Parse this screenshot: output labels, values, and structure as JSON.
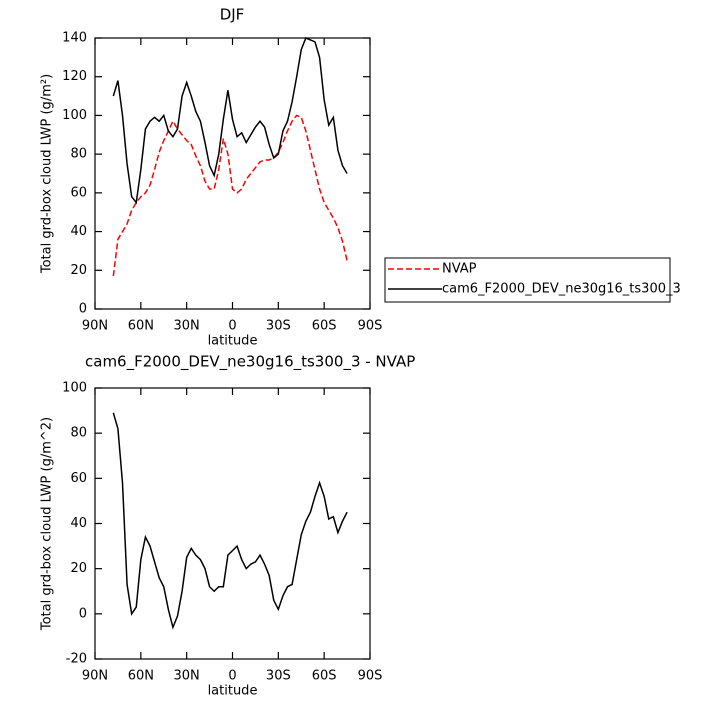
{
  "chart_data": [
    {
      "type": "line",
      "title": "DJF",
      "xlabel": "latitude",
      "ylabel": "Total grd-box cloud LWP (g/m²)",
      "x": [
        78,
        75,
        72,
        69,
        66,
        63,
        60,
        57,
        54,
        51,
        48,
        45,
        42,
        39,
        36,
        33,
        30,
        27,
        24,
        21,
        18,
        15,
        12,
        9,
        6,
        3,
        0,
        -3,
        -6,
        -9,
        -12,
        -15,
        -18,
        -21,
        -24,
        -27,
        -30,
        -33,
        -36,
        -39,
        -42,
        -45,
        -48,
        -51,
        -54,
        -57,
        -60,
        -63,
        -66,
        -69,
        -72,
        -75
      ],
      "xlim": [
        90,
        -90
      ],
      "xticks": [
        {
          "value": 90,
          "label": "90N"
        },
        {
          "value": 60,
          "label": "60N"
        },
        {
          "value": 30,
          "label": "30N"
        },
        0,
        {
          "value": -30,
          "label": "30S"
        },
        {
          "value": -60,
          "label": "60S"
        },
        {
          "value": -90,
          "label": "90S"
        }
      ],
      "ylim": [
        0,
        140
      ],
      "yticks": [
        0,
        20,
        40,
        60,
        80,
        100,
        120,
        140
      ],
      "legend": "outside-right",
      "series": [
        {
          "name": "NVAP",
          "color": "#ff0000",
          "style": "dashed",
          "values": [
            17,
            36,
            40,
            44,
            51,
            55,
            58,
            60,
            64,
            72,
            81,
            87,
            92,
            97,
            93,
            90,
            87,
            85,
            79,
            74,
            66,
            62,
            62,
            72,
            88,
            80,
            62,
            60,
            62,
            67,
            70,
            73,
            76,
            77,
            77,
            78,
            81,
            86,
            92,
            97,
            100,
            99,
            92,
            82,
            72,
            62,
            55,
            51,
            47,
            42,
            35,
            25
          ]
        },
        {
          "name": "cam6_F2000_DEV_ne30g16_ts300_3",
          "color": "#000000",
          "style": "solid",
          "values": [
            110,
            118,
            100,
            75,
            58,
            55,
            72,
            93,
            97,
            99,
            97,
            100,
            92,
            89,
            93,
            110,
            117,
            110,
            102,
            97,
            86,
            74,
            69,
            80,
            98,
            113,
            98,
            89,
            91,
            86,
            90,
            94,
            97,
            94,
            85,
            78,
            80,
            92,
            97,
            107,
            120,
            134,
            140,
            139,
            138,
            130,
            108,
            95,
            99,
            82,
            74,
            70
          ]
        }
      ]
    },
    {
      "type": "line",
      "title": "cam6_F2000_DEV_ne30g16_ts300_3 - NVAP",
      "xlabel": "latitude",
      "ylabel": "Total grd-box cloud LWP (g/m^2)",
      "x": [
        78,
        75,
        72,
        69,
        66,
        63,
        60,
        57,
        54,
        51,
        48,
        45,
        42,
        39,
        36,
        33,
        30,
        27,
        24,
        21,
        18,
        15,
        12,
        9,
        6,
        3,
        0,
        -3,
        -6,
        -9,
        -12,
        -15,
        -18,
        -21,
        -24,
        -27,
        -30,
        -33,
        -36,
        -39,
        -42,
        -45,
        -48,
        -51,
        -54,
        -57,
        -60,
        -63,
        -66,
        -69,
        -72,
        -75
      ],
      "xlim": [
        90,
        -90
      ],
      "xticks": [
        {
          "value": 90,
          "label": "90N"
        },
        {
          "value": 60,
          "label": "60N"
        },
        {
          "value": 30,
          "label": "30N"
        },
        0,
        {
          "value": -30,
          "label": "30S"
        },
        {
          "value": -60,
          "label": "60S"
        },
        {
          "value": -90,
          "label": "90S"
        }
      ],
      "ylim": [
        -20,
        100
      ],
      "yticks": [
        -20,
        0,
        20,
        40,
        60,
        80,
        100
      ],
      "color": "#000000",
      "values": [
        89,
        82,
        58,
        13,
        0,
        3,
        24,
        34,
        30,
        23,
        16,
        12,
        2,
        -6,
        -1,
        10,
        25,
        29,
        26,
        24,
        20,
        12,
        10,
        12,
        12,
        26,
        28,
        30,
        24,
        20,
        22,
        23,
        26,
        22,
        17,
        6,
        2,
        8,
        12,
        13,
        24,
        35,
        41,
        45,
        52,
        58,
        52,
        42,
        43,
        36,
        41,
        45
      ]
    }
  ]
}
